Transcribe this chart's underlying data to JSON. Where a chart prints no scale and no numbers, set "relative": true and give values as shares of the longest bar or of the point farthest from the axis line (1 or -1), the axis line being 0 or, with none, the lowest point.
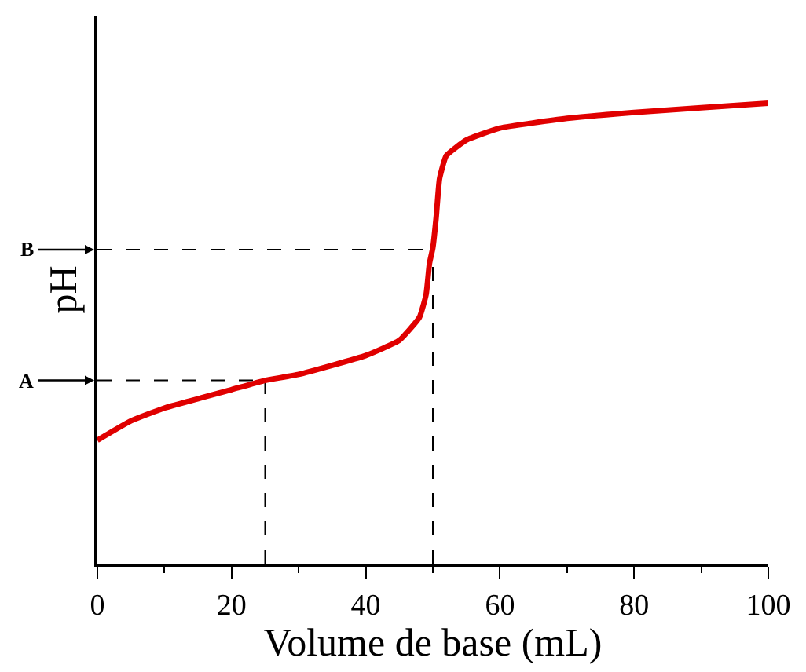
{
  "chart_data": {
    "type": "line",
    "relative": true,
    "xlabel": "Volume de base (mL)",
    "ylabel": "pH",
    "xlim": [
      0,
      100
    ],
    "xticks": [
      0,
      20,
      40,
      60,
      80,
      100
    ],
    "grid": false,
    "legend": false,
    "marker": "none",
    "line_style": "solid",
    "x": [
      0,
      5,
      10,
      20,
      25,
      30,
      40,
      45,
      48,
      49,
      49.5,
      50,
      50.5,
      51,
      52,
      55,
      60,
      70,
      80,
      90,
      100
    ],
    "series": [
      {
        "color": "#e00000",
        "values": [
          0.268,
          0.31,
          0.338,
          0.378,
          0.398,
          0.411,
          0.452,
          0.485,
          0.535,
          0.585,
          0.652,
          0.686,
          0.753,
          0.836,
          0.886,
          0.92,
          0.946,
          0.967,
          0.98,
          0.99,
          1
        ]
      }
    ],
    "ref_lines": [
      {
        "axis": "x",
        "value": 25,
        "color": "#000000",
        "line_style": "dashed"
      },
      {
        "axis": "y",
        "value": 0.398,
        "label": "A",
        "color": "#000000",
        "line_style": "dashed"
      },
      {
        "axis": "x",
        "value": 50,
        "color": "#000000",
        "line_style": "dashed"
      },
      {
        "axis": "y",
        "value": 0.682,
        "label": "B",
        "color": "#000000",
        "line_style": "dashed"
      }
    ]
  }
}
